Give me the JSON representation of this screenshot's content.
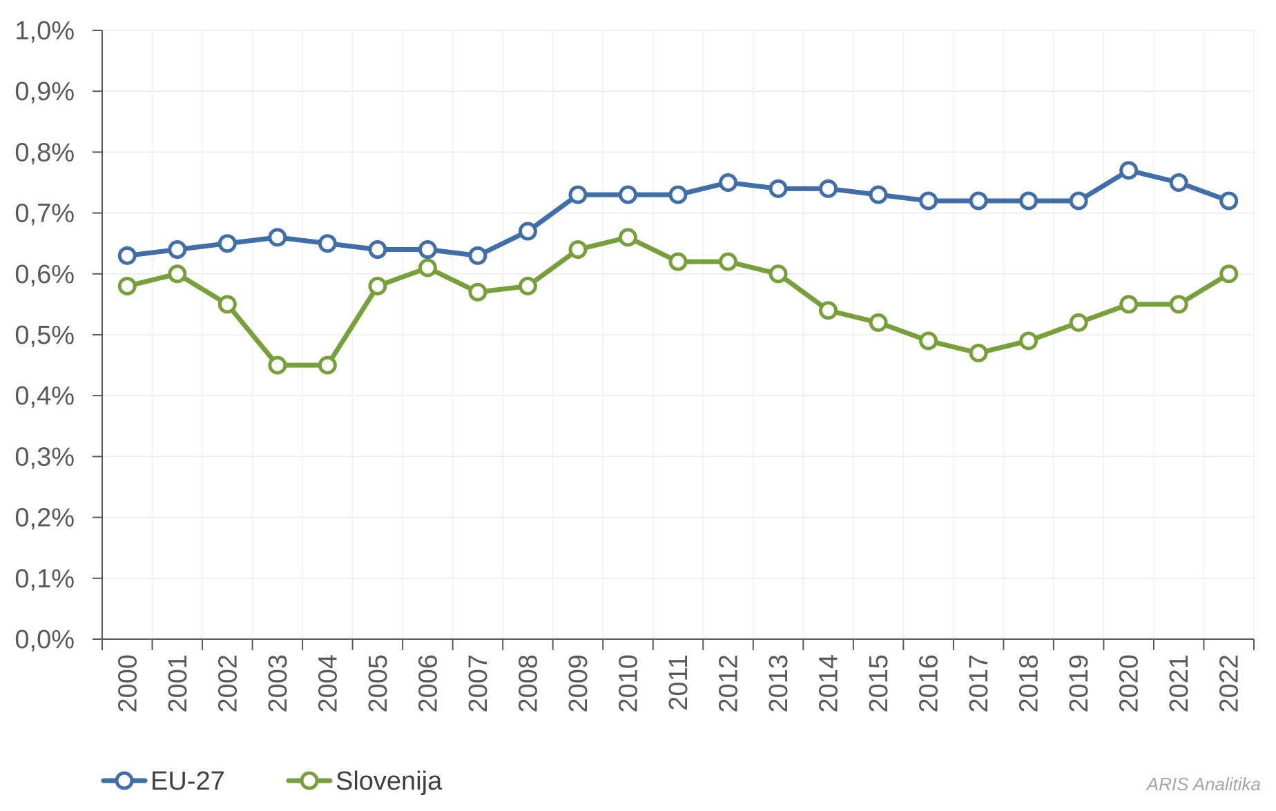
{
  "chart_data": {
    "type": "line",
    "title": "",
    "xlabel": "",
    "ylabel": "",
    "categories": [
      "2000",
      "2001",
      "2002",
      "2003",
      "2004",
      "2005",
      "2006",
      "2007",
      "2008",
      "2009",
      "2010",
      "2011",
      "2012",
      "2013",
      "2014",
      "2015",
      "2016",
      "2017",
      "2018",
      "2019",
      "2020",
      "2021",
      "2022"
    ],
    "ylim": [
      0,
      1.0
    ],
    "y_ticks": [
      0,
      0.1,
      0.2,
      0.3,
      0.4,
      0.5,
      0.6,
      0.7,
      0.8,
      0.9,
      1.0
    ],
    "y_tick_labels": [
      "0,0%",
      "0,1%",
      "0,2%",
      "0,3%",
      "0,4%",
      "0,5%",
      "0,6%",
      "0,7%",
      "0,8%",
      "0,9%",
      "1,0%"
    ],
    "grid": true,
    "legend_position": "bottom-left",
    "series": [
      {
        "name": "EU-27",
        "color": "#3f6ea8",
        "values": [
          0.63,
          0.64,
          0.65,
          0.66,
          0.65,
          0.64,
          0.64,
          0.63,
          0.67,
          0.73,
          0.73,
          0.73,
          0.75,
          0.74,
          0.74,
          0.73,
          0.72,
          0.72,
          0.72,
          0.72,
          0.77,
          0.75,
          0.72
        ]
      },
      {
        "name": "Slovenija",
        "color": "#77a03a",
        "values": [
          0.58,
          0.6,
          0.55,
          0.45,
          0.45,
          0.58,
          0.61,
          0.57,
          0.58,
          0.64,
          0.66,
          0.62,
          0.62,
          0.6,
          0.54,
          0.52,
          0.49,
          0.47,
          0.49,
          0.52,
          0.55,
          0.55,
          0.6
        ]
      }
    ]
  },
  "credit": "ARIS Analitika"
}
